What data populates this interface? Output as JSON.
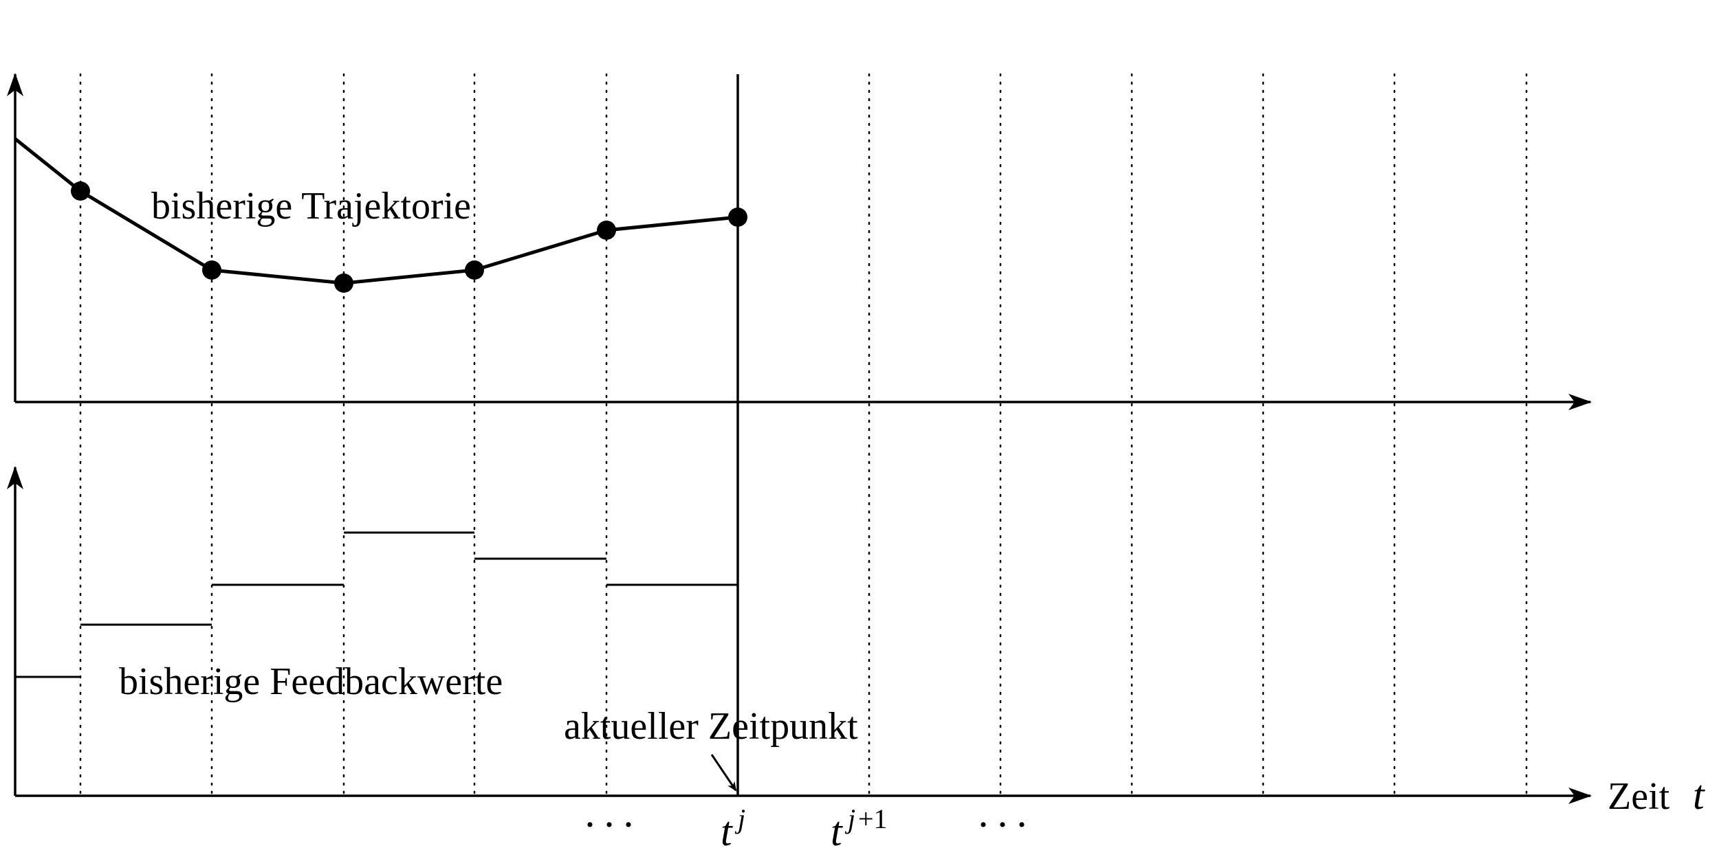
{
  "labels": {
    "trajectory": "bisherige Trajektorie",
    "feedback": "bisherige Feedbackwerte",
    "current_time": "aktueller Zeitpunkt",
    "time_axis_word": "Zeit",
    "time_axis_symbol": "t",
    "ellipsis_left": "···",
    "ellipsis_right": "···",
    "tick_tj_base": "t",
    "tick_tj_sup": "j",
    "tick_tj1_base": "t",
    "tick_tj1_sup_j": "j",
    "tick_tj1_sup_rest": "+1"
  },
  "colors": {
    "line": "#000000",
    "grid": "#000000",
    "background": "#ffffff"
  }
}
